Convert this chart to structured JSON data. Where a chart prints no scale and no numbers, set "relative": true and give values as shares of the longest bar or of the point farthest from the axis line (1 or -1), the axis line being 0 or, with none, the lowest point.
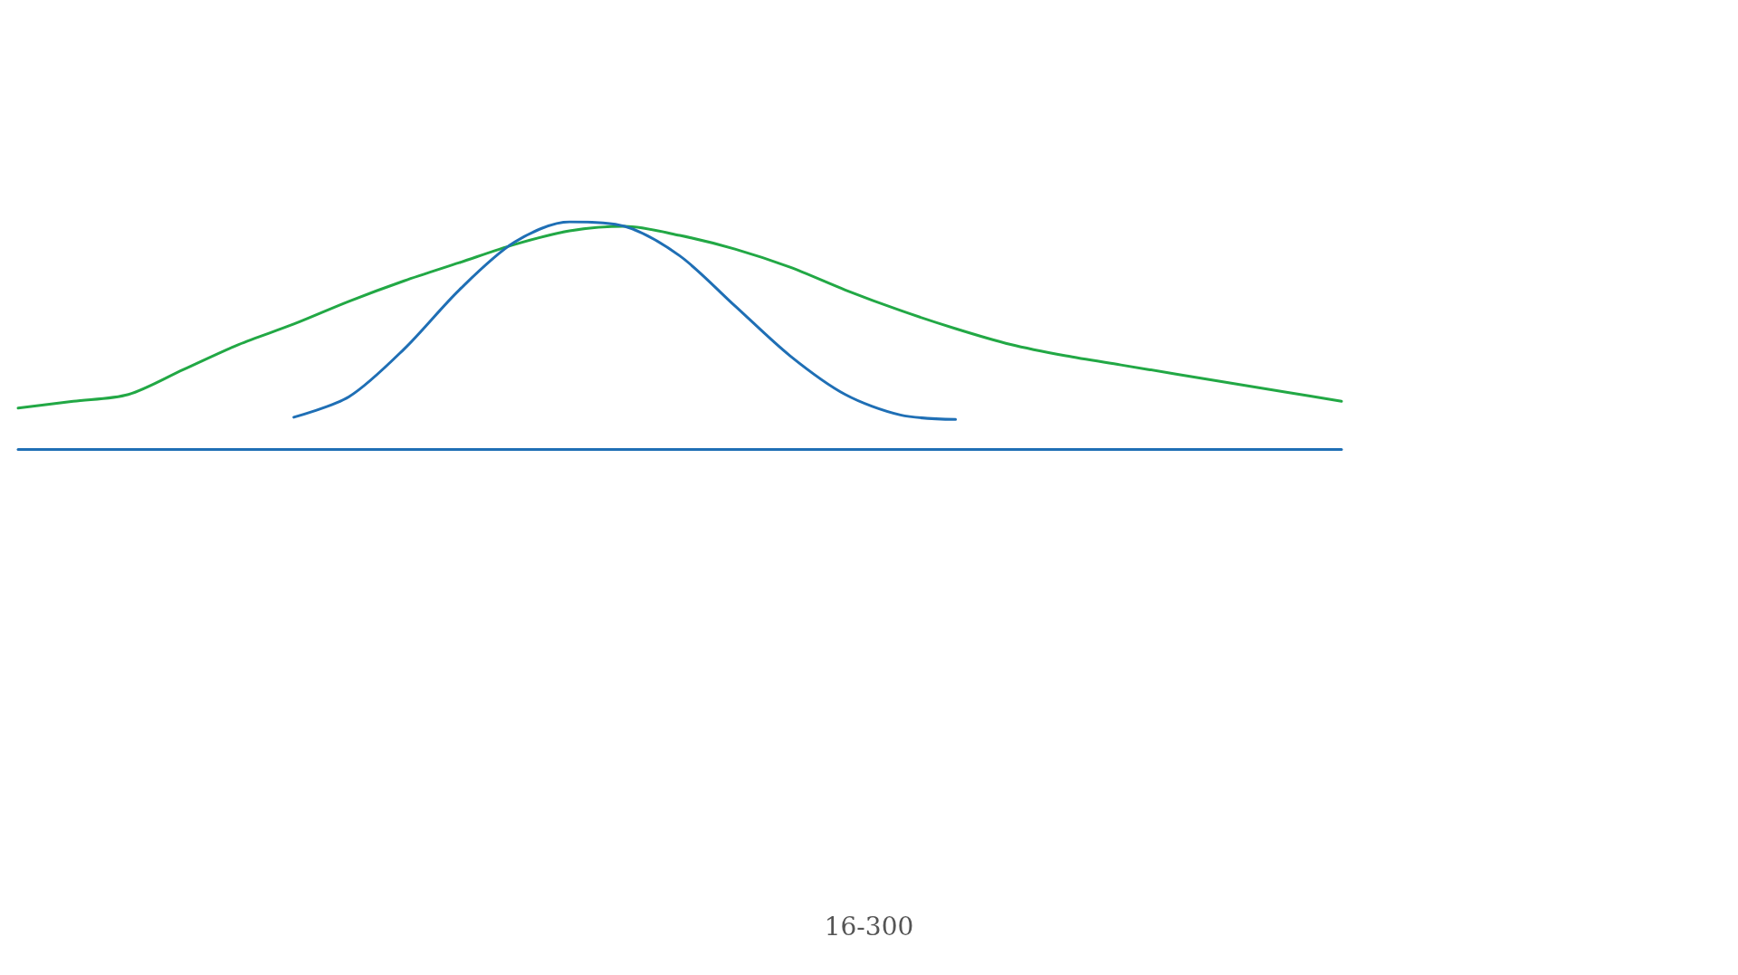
{
  "chart_data": {
    "type": "line",
    "relative": true,
    "grid": false,
    "marker": "none",
    "line_style": "solid",
    "categories": [
      null,
      null,
      null,
      null,
      null,
      null,
      null,
      null,
      null,
      null,
      null,
      null,
      null,
      null,
      null,
      null,
      null,
      null,
      null,
      null,
      null,
      null,
      null,
      null,
      null
    ],
    "series": [
      {
        "color": "#22a845",
        "values": [
          0.18,
          0.21,
          0.24,
          0.35,
          0.46,
          0.55,
          0.65,
          0.74,
          0.82,
          0.9,
          0.96,
          0.98,
          0.94,
          0.88,
          0.8,
          0.7,
          0.61,
          0.53,
          0.46,
          0.41,
          0.37,
          0.33,
          0.29,
          0.25,
          0.21
        ]
      },
      {
        "color": "#1f6fb5",
        "values": [
          null,
          null,
          null,
          null,
          null,
          0.14,
          0.23,
          0.44,
          0.7,
          0.91,
          1,
          0.98,
          0.85,
          0.63,
          0.41,
          0.24,
          0.15,
          0.13,
          null,
          null,
          null,
          null,
          null,
          null,
          null
        ]
      }
    ],
    "annotations": [
      "16-300"
    ]
  }
}
